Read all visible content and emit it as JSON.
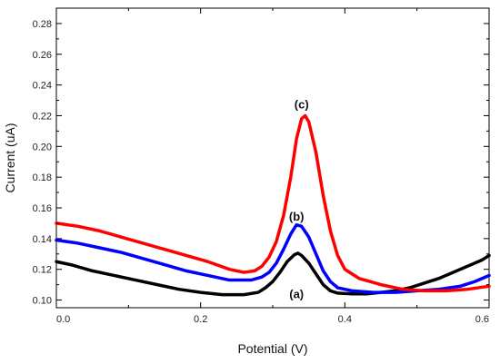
{
  "chart_data": {
    "type": "line",
    "title": "",
    "xlabel": "Potential (V)",
    "ylabel": "Current (uA)",
    "xlim": [
      0.0,
      0.6
    ],
    "ylim": [
      0.095,
      0.29
    ],
    "x_ticks": [
      "0.0",
      "0.2",
      "0.4",
      "0.6"
    ],
    "x_tick_values": [
      0.0,
      0.2,
      0.4,
      0.6
    ],
    "y_ticks": [
      "0.10",
      "0.12",
      "0.14",
      "0.16",
      "0.18",
      "0.20",
      "0.22",
      "0.24",
      "0.26",
      "0.28"
    ],
    "y_tick_values": [
      0.1,
      0.12,
      0.14,
      0.16,
      0.18,
      0.2,
      0.22,
      0.24,
      0.26,
      0.28
    ],
    "grid": false,
    "legend": "none",
    "series": [
      {
        "label": "(a)",
        "color": "#000000",
        "label_at": [
          0.333,
          0.1035
        ],
        "points": [
          [
            0.0,
            0.125
          ],
          [
            0.02,
            0.123
          ],
          [
            0.05,
            0.119
          ],
          [
            0.08,
            0.116
          ],
          [
            0.11,
            0.113
          ],
          [
            0.14,
            0.11
          ],
          [
            0.17,
            0.107
          ],
          [
            0.2,
            0.105
          ],
          [
            0.23,
            0.1035
          ],
          [
            0.26,
            0.1035
          ],
          [
            0.28,
            0.105
          ],
          [
            0.29,
            0.108
          ],
          [
            0.3,
            0.112
          ],
          [
            0.31,
            0.118
          ],
          [
            0.32,
            0.125
          ],
          [
            0.33,
            0.1295
          ],
          [
            0.335,
            0.1305
          ],
          [
            0.34,
            0.129
          ],
          [
            0.35,
            0.124
          ],
          [
            0.36,
            0.117
          ],
          [
            0.37,
            0.11
          ],
          [
            0.38,
            0.106
          ],
          [
            0.39,
            0.1045
          ],
          [
            0.41,
            0.104
          ],
          [
            0.43,
            0.104
          ],
          [
            0.45,
            0.105
          ],
          [
            0.47,
            0.106
          ],
          [
            0.49,
            0.108
          ],
          [
            0.51,
            0.111
          ],
          [
            0.53,
            0.114
          ],
          [
            0.55,
            0.118
          ],
          [
            0.57,
            0.122
          ],
          [
            0.59,
            0.126
          ],
          [
            0.6,
            0.129
          ]
        ]
      },
      {
        "label": "(b)",
        "color": "#0000ff",
        "label_at": [
          0.333,
          0.154
        ],
        "points": [
          [
            0.0,
            0.139
          ],
          [
            0.03,
            0.137
          ],
          [
            0.06,
            0.134
          ],
          [
            0.09,
            0.131
          ],
          [
            0.12,
            0.127
          ],
          [
            0.15,
            0.123
          ],
          [
            0.18,
            0.119
          ],
          [
            0.21,
            0.116
          ],
          [
            0.24,
            0.113
          ],
          [
            0.27,
            0.113
          ],
          [
            0.285,
            0.115
          ],
          [
            0.295,
            0.118
          ],
          [
            0.305,
            0.124
          ],
          [
            0.315,
            0.133
          ],
          [
            0.325,
            0.143
          ],
          [
            0.333,
            0.149
          ],
          [
            0.34,
            0.148
          ],
          [
            0.35,
            0.141
          ],
          [
            0.36,
            0.13
          ],
          [
            0.37,
            0.119
          ],
          [
            0.38,
            0.112
          ],
          [
            0.39,
            0.108
          ],
          [
            0.41,
            0.106
          ],
          [
            0.44,
            0.105
          ],
          [
            0.47,
            0.105
          ],
          [
            0.5,
            0.106
          ],
          [
            0.53,
            0.107
          ],
          [
            0.56,
            0.109
          ],
          [
            0.58,
            0.112
          ],
          [
            0.6,
            0.116
          ]
        ]
      },
      {
        "label": "(c)",
        "color": "#ff0000",
        "label_at": [
          0.34,
          0.227
        ],
        "points": [
          [
            0.0,
            0.15
          ],
          [
            0.03,
            0.148
          ],
          [
            0.06,
            0.145
          ],
          [
            0.09,
            0.141
          ],
          [
            0.12,
            0.137
          ],
          [
            0.15,
            0.133
          ],
          [
            0.18,
            0.129
          ],
          [
            0.21,
            0.125
          ],
          [
            0.24,
            0.12
          ],
          [
            0.26,
            0.118
          ],
          [
            0.275,
            0.119
          ],
          [
            0.285,
            0.122
          ],
          [
            0.295,
            0.128
          ],
          [
            0.305,
            0.138
          ],
          [
            0.315,
            0.155
          ],
          [
            0.325,
            0.18
          ],
          [
            0.333,
            0.205
          ],
          [
            0.34,
            0.218
          ],
          [
            0.345,
            0.22
          ],
          [
            0.35,
            0.216
          ],
          [
            0.36,
            0.196
          ],
          [
            0.37,
            0.168
          ],
          [
            0.38,
            0.145
          ],
          [
            0.39,
            0.129
          ],
          [
            0.4,
            0.12
          ],
          [
            0.42,
            0.114
          ],
          [
            0.45,
            0.11
          ],
          [
            0.48,
            0.107
          ],
          [
            0.51,
            0.106
          ],
          [
            0.54,
            0.106
          ],
          [
            0.57,
            0.107
          ],
          [
            0.6,
            0.109
          ]
        ]
      }
    ]
  }
}
